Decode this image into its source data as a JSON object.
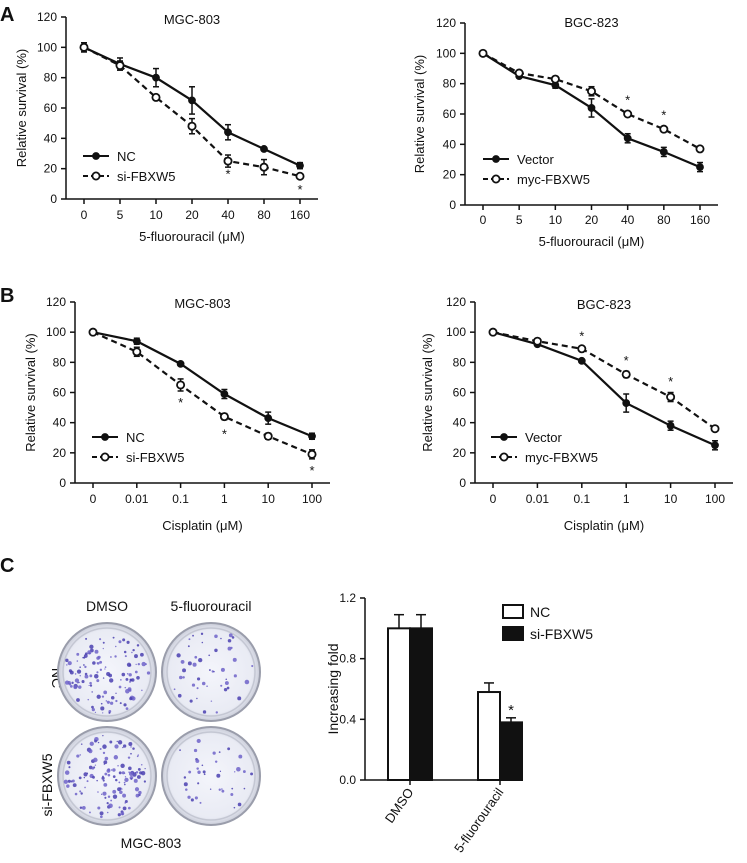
{
  "panel_labels": [
    "A",
    "B",
    "C"
  ],
  "colony": {
    "col_labels": [
      "DMSO",
      "5-fluorouracil"
    ],
    "row_labels": [
      "NC",
      "si-FBXW5"
    ],
    "cell_line": "MGC-803",
    "colony_density": [
      [
        0.9,
        0.35
      ],
      [
        0.95,
        0.28
      ]
    ]
  },
  "chart_data": [
    {
      "id": "A-left",
      "type": "line",
      "title": "MGC-803",
      "xlabel": "5-fluorouracil (μM)",
      "ylabel": "Relative survival (%)",
      "categories": [
        "0",
        "5",
        "10",
        "20",
        "40",
        "80",
        "160"
      ],
      "ylim": [
        0,
        120
      ],
      "yticks": [
        "0",
        "20",
        "40",
        "60",
        "80",
        "100",
        "120"
      ],
      "legend_position": "bottom-left",
      "series": [
        {
          "name": "NC",
          "style": "solid-filled",
          "values": [
            100,
            89,
            80,
            65,
            44,
            33,
            22
          ],
          "errors": [
            3,
            4,
            6,
            9,
            5,
            1,
            2
          ]
        },
        {
          "name": "si-FBXW5",
          "style": "dashed-open",
          "values": [
            100,
            88,
            67,
            48,
            25,
            21,
            15
          ],
          "errors": [
            3,
            3,
            1,
            5,
            4,
            5,
            1
          ]
        }
      ],
      "annotations": [
        {
          "index": 4,
          "value": 16,
          "text": "*"
        },
        {
          "index": 6,
          "value": 6,
          "text": "*"
        }
      ]
    },
    {
      "id": "A-right",
      "type": "line",
      "title": "BGC-823",
      "xlabel": "5-fluorouracil (μM)",
      "ylabel": "Relative survival (%)",
      "categories": [
        "0",
        "5",
        "10",
        "20",
        "40",
        "80",
        "160"
      ],
      "ylim": [
        0,
        120
      ],
      "yticks": [
        "0",
        "20",
        "40",
        "60",
        "80",
        "100",
        "120"
      ],
      "legend_position": "bottom-left",
      "series": [
        {
          "name": "Vector",
          "style": "solid-filled",
          "values": [
            100,
            85,
            79,
            64,
            44,
            35,
            25
          ],
          "errors": [
            1,
            1,
            2,
            6,
            3,
            3,
            3
          ]
        },
        {
          "name": "myc-FBXW5",
          "style": "dashed-open",
          "values": [
            100,
            87,
            83,
            75,
            60,
            50,
            37
          ],
          "errors": [
            1,
            1,
            1,
            3,
            1,
            1,
            1
          ]
        }
      ],
      "annotations": [
        {
          "index": 4,
          "value": 69,
          "text": "*"
        },
        {
          "index": 5,
          "value": 59,
          "text": "*"
        }
      ]
    },
    {
      "id": "B-left",
      "type": "line",
      "title": "MGC-803",
      "xlabel": "Cisplatin (μM)",
      "ylabel": "Relative survival (%)",
      "categories": [
        "0",
        "0.01",
        "0.1",
        "1",
        "10",
        "100"
      ],
      "ylim": [
        0,
        120
      ],
      "yticks": [
        "0",
        "20",
        "40",
        "60",
        "80",
        "100",
        "120"
      ],
      "legend_position": "bottom-left",
      "series": [
        {
          "name": "NC",
          "style": "solid-filled",
          "values": [
            100,
            94,
            79,
            59,
            43,
            31
          ],
          "errors": [
            1,
            2,
            1,
            3,
            4,
            2
          ]
        },
        {
          "name": "si-FBXW5",
          "style": "dashed-open",
          "values": [
            100,
            87,
            65,
            44,
            31,
            19
          ],
          "errors": [
            1,
            3,
            4,
            2,
            2,
            3
          ]
        }
      ],
      "annotations": [
        {
          "index": 2,
          "value": 53,
          "text": "*"
        },
        {
          "index": 3,
          "value": 32,
          "text": "*"
        },
        {
          "index": 5,
          "value": 8,
          "text": "*"
        }
      ]
    },
    {
      "id": "B-right",
      "type": "line",
      "title": "BGC-823",
      "xlabel": "Cisplatin (μM)",
      "ylabel": "Relative survival (%)",
      "categories": [
        "0",
        "0.01",
        "0.1",
        "1",
        "10",
        "100"
      ],
      "ylim": [
        0,
        120
      ],
      "yticks": [
        "0",
        "20",
        "40",
        "60",
        "80",
        "100",
        "120"
      ],
      "legend_position": "bottom-left",
      "series": [
        {
          "name": "Vector",
          "style": "solid-filled",
          "values": [
            100,
            92,
            81,
            53,
            38,
            25
          ],
          "errors": [
            1,
            1,
            1,
            6,
            3,
            3
          ]
        },
        {
          "name": "myc-FBXW5",
          "style": "dashed-open",
          "values": [
            100,
            94,
            89,
            72,
            57,
            36
          ],
          "errors": [
            1,
            1,
            1,
            2,
            3,
            1
          ]
        }
      ],
      "annotations": [
        {
          "index": 2,
          "value": 97,
          "text": "*"
        },
        {
          "index": 3,
          "value": 81,
          "text": "*"
        },
        {
          "index": 4,
          "value": 67,
          "text": "*"
        }
      ]
    },
    {
      "id": "C-bar",
      "type": "bar",
      "xlabel": "",
      "ylabel": "Increasing fold",
      "categories": [
        "DMSO",
        "5-fluorouracil"
      ],
      "ylim": [
        0,
        1.2
      ],
      "yticks": [
        "0.0",
        "0.4",
        "0.8",
        "1.2"
      ],
      "legend_position": "top-right",
      "series": [
        {
          "name": "NC",
          "style": "open",
          "values": [
            1.0,
            0.58
          ],
          "errors": [
            0.09,
            0.06
          ]
        },
        {
          "name": "si-FBXW5",
          "style": "filled",
          "values": [
            1.0,
            0.38
          ],
          "errors": [
            0.09,
            0.03
          ]
        }
      ],
      "annotations": [
        {
          "series": 1,
          "index": 1,
          "value": 0.46,
          "text": "*"
        }
      ]
    }
  ]
}
